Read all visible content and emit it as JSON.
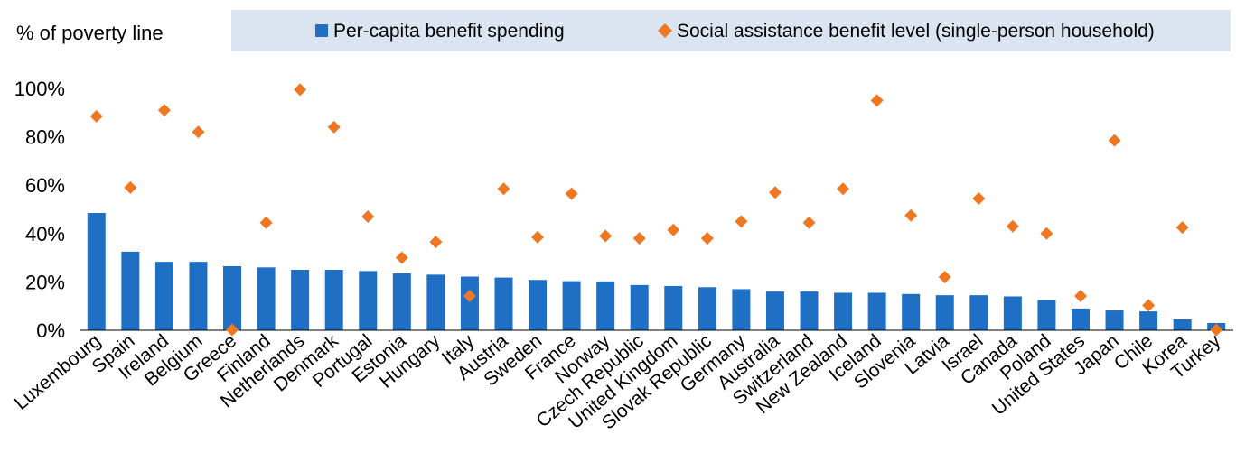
{
  "chart_data": {
    "type": "bar",
    "ylabel": "% of poverty line",
    "ylim": [
      0,
      100
    ],
    "y_ticks": [
      "0%",
      "20%",
      "40%",
      "60%",
      "80%",
      "100%"
    ],
    "grid": false,
    "legend_placement": "top",
    "categories": [
      "Luxembourg",
      "Spain",
      "Ireland",
      "Belgium",
      "Greece",
      "Finland",
      "Netherlands",
      "Denmark",
      "Portugal",
      "Estonia",
      "Hungary",
      "Italy",
      "Austria",
      "Sweden",
      "France",
      "Norway",
      "Czech Republic",
      "United Kingdom",
      "Slovak Republic",
      "Germany",
      "Australia",
      "Switzerland",
      "New Zealand",
      "Iceland",
      "Slovenia",
      "Latvia",
      "Israel",
      "Canada",
      "Poland",
      "United States",
      "Japan",
      "Chile",
      "Korea",
      "Turkey"
    ],
    "series": [
      {
        "name": "Per-capita benefit spending",
        "type": "bar",
        "color": "#1f6fc5",
        "values": [
          48.5,
          32.5,
          28.3,
          28.3,
          26.5,
          26,
          25,
          25,
          24.5,
          23.5,
          23,
          22.2,
          21.8,
          20.8,
          20.3,
          20.2,
          18.7,
          18.3,
          17.8,
          17,
          16,
          16,
          15.5,
          15.5,
          15,
          14.5,
          14.5,
          14,
          12.5,
          9,
          8.2,
          7.8,
          4.5,
          3
        ]
      },
      {
        "name": "Social assistance benefit level (single-person household)",
        "type": "scatter",
        "marker": "diamond",
        "color": "#ee7722",
        "values": [
          88.5,
          59,
          91,
          82,
          0.2,
          44.5,
          99.5,
          84,
          47,
          30,
          36.5,
          14.2,
          58.5,
          38.5,
          56.5,
          39,
          38,
          41.5,
          38,
          45,
          57,
          44.5,
          58.5,
          95,
          47.5,
          22,
          54.5,
          43,
          40,
          14.2,
          78.5,
          10.3,
          42.5,
          0.2
        ]
      }
    ]
  }
}
